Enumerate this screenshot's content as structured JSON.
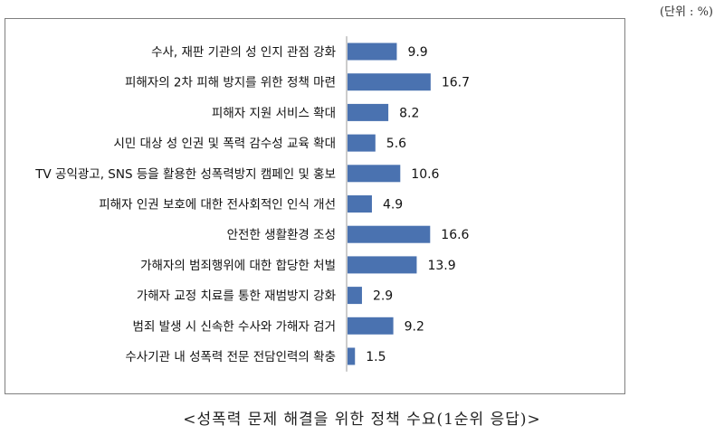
{
  "unit_label": "(단위 : %)",
  "caption": "<성폭력 문제 해결을 위한 정책 수요(1순위 응답)>",
  "chart_data": {
    "type": "bar",
    "orientation": "horizontal",
    "title": "",
    "xlabel": "",
    "ylabel": "",
    "unit": "%",
    "bar_color": "#4a72b0",
    "grid": false,
    "legend": "none",
    "xlim": [
      0,
      20
    ],
    "categories": [
      "수사, 재판 기관의 성 인지 관점 강화",
      "피해자의 2차 피해 방지를 위한 정책 마련",
      "피해자 지원 서비스 확대",
      "시민 대상 성 인권 및 폭력 감수성 교육 확대",
      "TV 공익광고, SNS 등을 활용한 성폭력방지 캠페인 및 홍보",
      "피해자 인권 보호에 대한 전사회적인 인식 개선",
      "안전한 생활환경 조성",
      "가해자의 범죄행위에 대한 합당한 처벌",
      "가해자 교정 치료를 통한 재범방지 강화",
      "범죄 발생 시 신속한 수사와 가해자 검거",
      "수사기관 내 성폭력 전문 전담인력의 확충"
    ],
    "values": [
      9.9,
      16.7,
      8.2,
      5.6,
      10.6,
      4.9,
      16.6,
      13.9,
      2.9,
      9.2,
      1.5
    ],
    "value_labels": [
      "9.9",
      "16.7",
      "8.2",
      "5.6",
      "10.6",
      "4.9",
      "16.6",
      "13.9",
      "2.9",
      "9.2",
      "1.5"
    ]
  }
}
